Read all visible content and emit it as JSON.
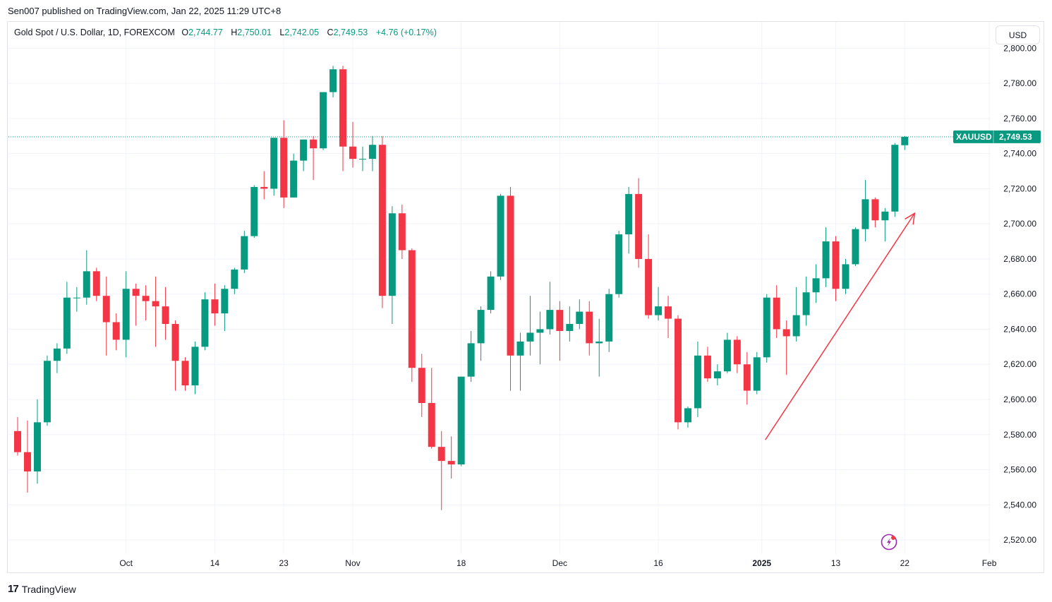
{
  "publisher": "Sen007 published on TradingView.com, Jan 22, 2025 11:29 UTC+8",
  "legend": {
    "symbol": "Gold Spot / U.S. Dollar, 1D, FOREXCOM",
    "open_label": "O",
    "open": "2,744.77",
    "high_label": "H",
    "high": "2,750.01",
    "low_label": "L",
    "low": "2,742.05",
    "close_label": "C",
    "close": "2,749.53",
    "change": "+4.76 (+0.17%)"
  },
  "currency_button": "USD",
  "price_badge": {
    "ticker": "XAUUSD",
    "price": "2,749.53"
  },
  "footer": {
    "brand": "TradingView"
  },
  "colors": {
    "up": "#089981",
    "down": "#f23645",
    "arrow": "#f23645",
    "grid": "#f0f3fa"
  },
  "chart_data": {
    "type": "candlestick",
    "symbol": "XAUUSD",
    "ylim": [
      2512,
      2815
    ],
    "y_ticks": [
      2520,
      2540,
      2560,
      2580,
      2600,
      2620,
      2640,
      2660,
      2680,
      2700,
      2720,
      2740,
      2760,
      2780,
      2800
    ],
    "y_tick_labels": [
      "2,520.00",
      "2,540.00",
      "2,560.00",
      "2,580.00",
      "2,600.00",
      "2,620.00",
      "2,640.00",
      "2,660.00",
      "2,680.00",
      "2,700.00",
      "2,720.00",
      "2,740.00",
      "2,760.00",
      "2,780.00",
      "2,800.00"
    ],
    "x_ticks": [
      {
        "label": "Oct",
        "date": "2024-10-01",
        "bold": false
      },
      {
        "label": "14",
        "date": "2024-10-14",
        "bold": false
      },
      {
        "label": "23",
        "date": "2024-10-23",
        "bold": false
      },
      {
        "label": "Nov",
        "date": "2024-11-01",
        "bold": false
      },
      {
        "label": "18",
        "date": "2024-11-18",
        "bold": false
      },
      {
        "label": "Dec",
        "date": "2024-12-02",
        "bold": false
      },
      {
        "label": "16",
        "date": "2024-12-16",
        "bold": false
      },
      {
        "label": "2025",
        "date": "2025-01-01",
        "bold": true
      },
      {
        "label": "13",
        "date": "2025-01-13",
        "bold": false
      },
      {
        "label": "22",
        "date": "2025-01-22",
        "bold": false
      },
      {
        "label": "Feb",
        "date": "2025-02-03",
        "bold": false
      }
    ],
    "last_price": 2749.53,
    "candles": [
      {
        "date": "2024-09-16",
        "o": 2582,
        "h": 2590,
        "l": 2568,
        "c": 2570
      },
      {
        "date": "2024-09-17",
        "o": 2570,
        "h": 2588,
        "l": 2547,
        "c": 2559
      },
      {
        "date": "2024-09-18",
        "o": 2559,
        "h": 2600,
        "l": 2552,
        "c": 2587
      },
      {
        "date": "2024-09-19",
        "o": 2587,
        "h": 2625,
        "l": 2585,
        "c": 2622
      },
      {
        "date": "2024-09-20",
        "o": 2622,
        "h": 2632,
        "l": 2615,
        "c": 2629
      },
      {
        "date": "2024-09-23",
        "o": 2629,
        "h": 2667,
        "l": 2626,
        "c": 2658
      },
      {
        "date": "2024-09-24",
        "o": 2658,
        "h": 2664,
        "l": 2650,
        "c": 2658
      },
      {
        "date": "2024-09-25",
        "o": 2658,
        "h": 2685,
        "l": 2654,
        "c": 2673
      },
      {
        "date": "2024-09-26",
        "o": 2673,
        "h": 2675,
        "l": 2656,
        "c": 2659
      },
      {
        "date": "2024-09-27",
        "o": 2659,
        "h": 2670,
        "l": 2625,
        "c": 2644
      },
      {
        "date": "2024-09-30",
        "o": 2644,
        "h": 2649,
        "l": 2628,
        "c": 2634
      },
      {
        "date": "2024-10-01",
        "o": 2634,
        "h": 2673,
        "l": 2624,
        "c": 2663
      },
      {
        "date": "2024-10-02",
        "o": 2663,
        "h": 2666,
        "l": 2642,
        "c": 2659
      },
      {
        "date": "2024-10-03",
        "o": 2659,
        "h": 2665,
        "l": 2645,
        "c": 2656
      },
      {
        "date": "2024-10-04",
        "o": 2656,
        "h": 2670,
        "l": 2630,
        "c": 2653
      },
      {
        "date": "2024-10-07",
        "o": 2653,
        "h": 2664,
        "l": 2634,
        "c": 2643
      },
      {
        "date": "2024-10-08",
        "o": 2643,
        "h": 2645,
        "l": 2605,
        "c": 2622
      },
      {
        "date": "2024-10-09",
        "o": 2622,
        "h": 2624,
        "l": 2605,
        "c": 2608
      },
      {
        "date": "2024-10-10",
        "o": 2608,
        "h": 2633,
        "l": 2603,
        "c": 2630
      },
      {
        "date": "2024-10-11",
        "o": 2630,
        "h": 2661,
        "l": 2628,
        "c": 2657
      },
      {
        "date": "2024-10-14",
        "o": 2657,
        "h": 2666,
        "l": 2642,
        "c": 2649
      },
      {
        "date": "2024-10-15",
        "o": 2649,
        "h": 2665,
        "l": 2639,
        "c": 2663
      },
      {
        "date": "2024-10-16",
        "o": 2663,
        "h": 2675,
        "l": 2660,
        "c": 2674
      },
      {
        "date": "2024-10-17",
        "o": 2674,
        "h": 2696,
        "l": 2672,
        "c": 2693
      },
      {
        "date": "2024-10-18",
        "o": 2693,
        "h": 2722,
        "l": 2692,
        "c": 2721
      },
      {
        "date": "2024-10-21",
        "o": 2721,
        "h": 2730,
        "l": 2714,
        "c": 2720
      },
      {
        "date": "2024-10-22",
        "o": 2720,
        "h": 2749,
        "l": 2716,
        "c": 2749
      },
      {
        "date": "2024-10-23",
        "o": 2749,
        "h": 2759,
        "l": 2709,
        "c": 2715
      },
      {
        "date": "2024-10-24",
        "o": 2715,
        "h": 2740,
        "l": 2715,
        "c": 2736
      },
      {
        "date": "2024-10-25",
        "o": 2736,
        "h": 2748,
        "l": 2730,
        "c": 2748
      },
      {
        "date": "2024-10-28",
        "o": 2748,
        "h": 2750,
        "l": 2725,
        "c": 2743
      },
      {
        "date": "2024-10-29",
        "o": 2743,
        "h": 2775,
        "l": 2742,
        "c": 2775
      },
      {
        "date": "2024-10-30",
        "o": 2775,
        "h": 2790,
        "l": 2772,
        "c": 2788
      },
      {
        "date": "2024-10-31",
        "o": 2788,
        "h": 2790,
        "l": 2730,
        "c": 2744
      },
      {
        "date": "2024-11-01",
        "o": 2744,
        "h": 2758,
        "l": 2732,
        "c": 2737
      },
      {
        "date": "2024-11-04",
        "o": 2737,
        "h": 2744,
        "l": 2730,
        "c": 2737
      },
      {
        "date": "2024-11-05",
        "o": 2737,
        "h": 2750,
        "l": 2730,
        "c": 2745
      },
      {
        "date": "2024-11-06",
        "o": 2745,
        "h": 2750,
        "l": 2652,
        "c": 2659
      },
      {
        "date": "2024-11-07",
        "o": 2659,
        "h": 2710,
        "l": 2643,
        "c": 2706
      },
      {
        "date": "2024-11-08",
        "o": 2706,
        "h": 2711,
        "l": 2680,
        "c": 2685
      },
      {
        "date": "2024-11-11",
        "o": 2685,
        "h": 2686,
        "l": 2610,
        "c": 2618
      },
      {
        "date": "2024-11-12",
        "o": 2618,
        "h": 2626,
        "l": 2590,
        "c": 2598
      },
      {
        "date": "2024-11-13",
        "o": 2598,
        "h": 2618,
        "l": 2572,
        "c": 2573
      },
      {
        "date": "2024-11-14",
        "o": 2573,
        "h": 2582,
        "l": 2537,
        "c": 2565
      },
      {
        "date": "2024-11-15",
        "o": 2565,
        "h": 2579,
        "l": 2555,
        "c": 2563
      },
      {
        "date": "2024-11-18",
        "o": 2563,
        "h": 2613,
        "l": 2562,
        "c": 2613
      },
      {
        "date": "2024-11-19",
        "o": 2613,
        "h": 2639,
        "l": 2610,
        "c": 2632
      },
      {
        "date": "2024-11-20",
        "o": 2632,
        "h": 2653,
        "l": 2622,
        "c": 2651
      },
      {
        "date": "2024-11-21",
        "o": 2651,
        "h": 2673,
        "l": 2649,
        "c": 2670
      },
      {
        "date": "2024-11-22",
        "o": 2670,
        "h": 2717,
        "l": 2668,
        "c": 2716
      },
      {
        "date": "2024-11-25",
        "o": 2716,
        "h": 2721,
        "l": 2605,
        "c": 2625
      },
      {
        "date": "2024-11-26",
        "o": 2625,
        "h": 2638,
        "l": 2605,
        "c": 2633
      },
      {
        "date": "2024-11-27",
        "o": 2633,
        "h": 2659,
        "l": 2625,
        "c": 2638
      },
      {
        "date": "2024-11-28",
        "o": 2638,
        "h": 2650,
        "l": 2620,
        "c": 2640
      },
      {
        "date": "2024-11-29",
        "o": 2640,
        "h": 2667,
        "l": 2637,
        "c": 2651
      },
      {
        "date": "2024-12-02",
        "o": 2651,
        "h": 2656,
        "l": 2622,
        "c": 2639
      },
      {
        "date": "2024-12-03",
        "o": 2639,
        "h": 2653,
        "l": 2633,
        "c": 2643
      },
      {
        "date": "2024-12-04",
        "o": 2643,
        "h": 2657,
        "l": 2640,
        "c": 2650
      },
      {
        "date": "2024-12-05",
        "o": 2650,
        "h": 2656,
        "l": 2625,
        "c": 2632
      },
      {
        "date": "2024-12-06",
        "o": 2632,
        "h": 2646,
        "l": 2613,
        "c": 2633
      },
      {
        "date": "2024-12-09",
        "o": 2633,
        "h": 2663,
        "l": 2627,
        "c": 2660
      },
      {
        "date": "2024-12-10",
        "o": 2660,
        "h": 2696,
        "l": 2658,
        "c": 2694
      },
      {
        "date": "2024-12-11",
        "o": 2694,
        "h": 2721,
        "l": 2683,
        "c": 2717
      },
      {
        "date": "2024-12-12",
        "o": 2717,
        "h": 2726,
        "l": 2675,
        "c": 2680
      },
      {
        "date": "2024-12-13",
        "o": 2680,
        "h": 2694,
        "l": 2646,
        "c": 2648
      },
      {
        "date": "2024-12-16",
        "o": 2648,
        "h": 2664,
        "l": 2645,
        "c": 2653
      },
      {
        "date": "2024-12-17",
        "o": 2653,
        "h": 2659,
        "l": 2635,
        "c": 2646
      },
      {
        "date": "2024-12-18",
        "o": 2646,
        "h": 2648,
        "l": 2583,
        "c": 2587
      },
      {
        "date": "2024-12-19",
        "o": 2587,
        "h": 2596,
        "l": 2584,
        "c": 2595
      },
      {
        "date": "2024-12-20",
        "o": 2595,
        "h": 2633,
        "l": 2590,
        "c": 2625
      },
      {
        "date": "2024-12-23",
        "o": 2625,
        "h": 2630,
        "l": 2610,
        "c": 2612
      },
      {
        "date": "2024-12-24",
        "o": 2612,
        "h": 2620,
        "l": 2608,
        "c": 2616
      },
      {
        "date": "2024-12-26",
        "o": 2616,
        "h": 2638,
        "l": 2615,
        "c": 2634
      },
      {
        "date": "2024-12-27",
        "o": 2634,
        "h": 2636,
        "l": 2615,
        "c": 2620
      },
      {
        "date": "2024-12-30",
        "o": 2620,
        "h": 2627,
        "l": 2597,
        "c": 2605
      },
      {
        "date": "2024-12-31",
        "o": 2605,
        "h": 2627,
        "l": 2603,
        "c": 2624
      },
      {
        "date": "2025-01-02",
        "o": 2624,
        "h": 2660,
        "l": 2621,
        "c": 2658
      },
      {
        "date": "2025-01-03",
        "o": 2658,
        "h": 2665,
        "l": 2635,
        "c": 2640
      },
      {
        "date": "2025-01-06",
        "o": 2640,
        "h": 2645,
        "l": 2614,
        "c": 2636
      },
      {
        "date": "2025-01-07",
        "o": 2636,
        "h": 2664,
        "l": 2633,
        "c": 2648
      },
      {
        "date": "2025-01-08",
        "o": 2648,
        "h": 2670,
        "l": 2642,
        "c": 2661
      },
      {
        "date": "2025-01-09",
        "o": 2661,
        "h": 2677,
        "l": 2655,
        "c": 2669
      },
      {
        "date": "2025-01-10",
        "o": 2669,
        "h": 2698,
        "l": 2664,
        "c": 2690
      },
      {
        "date": "2025-01-13",
        "o": 2690,
        "h": 2693,
        "l": 2656,
        "c": 2663
      },
      {
        "date": "2025-01-14",
        "o": 2663,
        "h": 2680,
        "l": 2660,
        "c": 2677
      },
      {
        "date": "2025-01-15",
        "o": 2677,
        "h": 2698,
        "l": 2676,
        "c": 2697
      },
      {
        "date": "2025-01-16",
        "o": 2697,
        "h": 2725,
        "l": 2690,
        "c": 2714
      },
      {
        "date": "2025-01-17",
        "o": 2714,
        "h": 2715,
        "l": 2698,
        "c": 2702
      },
      {
        "date": "2025-01-20",
        "o": 2702,
        "h": 2709,
        "l": 2690,
        "c": 2707
      },
      {
        "date": "2025-01-21",
        "o": 2707,
        "h": 2746,
        "l": 2704,
        "c": 2745
      },
      {
        "date": "2025-01-22",
        "o": 2744.77,
        "h": 2750.01,
        "l": 2742.05,
        "c": 2749.53
      }
    ],
    "annotation": {
      "type": "arrow",
      "from": {
        "date": "2025-01-03",
        "price": 2577
      },
      "to": {
        "date": "2025-01-22",
        "price": 2706
      }
    }
  }
}
